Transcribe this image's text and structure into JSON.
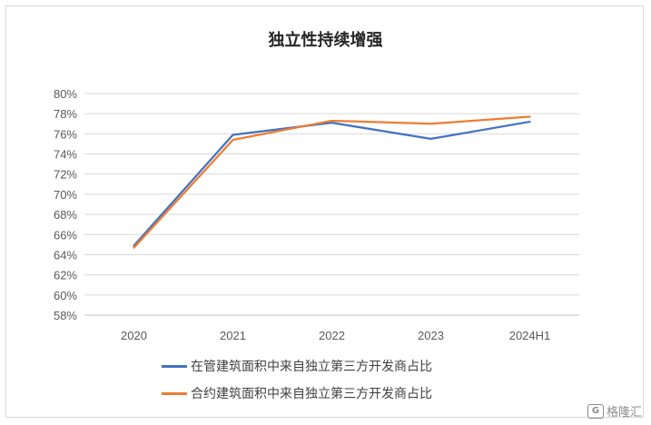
{
  "chart_data": {
    "type": "line",
    "title": "独立性持续增强",
    "categories": [
      "2020",
      "2021",
      "2022",
      "2023",
      "2024H1"
    ],
    "y_ticks": [
      "58%",
      "60%",
      "62%",
      "64%",
      "66%",
      "68%",
      "70%",
      "72%",
      "74%",
      "76%",
      "78%",
      "80%"
    ],
    "ylim": [
      58,
      80
    ],
    "grid": true,
    "legend_position": "bottom",
    "series": [
      {
        "name": "在管建筑面积中来自独立第三方开发商占比",
        "color": "#4472C4",
        "values": [
          64.9,
          75.9,
          77.1,
          75.5,
          77.2
        ]
      },
      {
        "name": "合约建筑面积中来自独立第三方开发商占比",
        "color": "#ED7D31",
        "values": [
          64.7,
          75.4,
          77.3,
          77.0,
          77.7
        ]
      }
    ]
  },
  "watermark": {
    "logo": "G",
    "text": "格隆汇"
  }
}
